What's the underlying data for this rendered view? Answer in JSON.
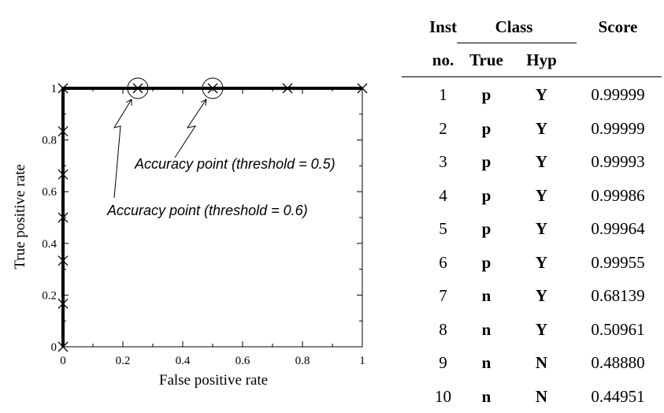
{
  "chart_data": {
    "type": "line",
    "xlabel": "False positive rate",
    "ylabel": "True positive rate",
    "xlim": [
      0,
      1
    ],
    "ylim": [
      0,
      1
    ],
    "x_ticks": [
      "0",
      "0.2",
      "0.4",
      "0.6",
      "0.8",
      "1"
    ],
    "y_ticks": [
      "0",
      "0.2",
      "0.4",
      "0.6",
      "0.8",
      "1"
    ],
    "series": [
      {
        "x": [
          0,
          0,
          0,
          0,
          0,
          0,
          0,
          0.25,
          0.5,
          0.75,
          1
        ],
        "y": [
          0,
          0.1667,
          0.3333,
          0.5,
          0.6667,
          0.8333,
          1,
          1,
          1,
          1,
          1
        ]
      }
    ],
    "annotations": [
      {
        "text": "Accuracy point (threshold = 0.5)",
        "x": 0.5,
        "y": 1
      },
      {
        "text": "Accuracy point (threshold = 0.6)",
        "x": 0.25,
        "y": 1
      }
    ]
  },
  "table": {
    "header_inst_top": "Inst",
    "header_inst_bottom": "no.",
    "header_class": "Class",
    "header_true": "True",
    "header_hyp": "Hyp",
    "header_score": "Score",
    "rows": [
      {
        "inst": "1",
        "true": "p",
        "hyp": "Y",
        "score": "0.99999"
      },
      {
        "inst": "2",
        "true": "p",
        "hyp": "Y",
        "score": "0.99999"
      },
      {
        "inst": "3",
        "true": "p",
        "hyp": "Y",
        "score": "0.99993"
      },
      {
        "inst": "4",
        "true": "p",
        "hyp": "Y",
        "score": "0.99986"
      },
      {
        "inst": "5",
        "true": "p",
        "hyp": "Y",
        "score": "0.99964"
      },
      {
        "inst": "6",
        "true": "p",
        "hyp": "Y",
        "score": "0.99955"
      },
      {
        "inst": "7",
        "true": "n",
        "hyp": "Y",
        "score": "0.68139"
      },
      {
        "inst": "8",
        "true": "n",
        "hyp": "Y",
        "score": "0.50961"
      },
      {
        "inst": "9",
        "true": "n",
        "hyp": "N",
        "score": "0.48880"
      },
      {
        "inst": "10",
        "true": "n",
        "hyp": "N",
        "score": "0.44951"
      }
    ]
  }
}
